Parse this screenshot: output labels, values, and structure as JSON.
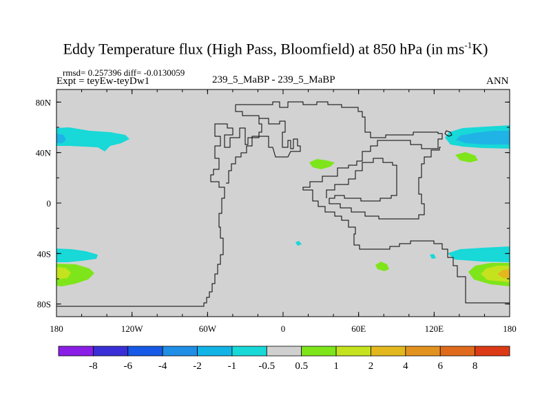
{
  "header": {
    "title_main": "Eddy Temperature flux (High Pass, Bloomfield) at 850 hPa (in ms",
    "title_sup": "-1",
    "title_tail": "K)",
    "stats": "rmsd= 0.257396 diff= -0.0130059",
    "expt": "Expt = teyEw-teyDw1",
    "case": "239_5_MaBP - 239_5_MaBP",
    "season": "ANN"
  },
  "chart_data": {
    "type": "contour_map",
    "title": "Eddy Temperature flux (High Pass, Bloomfield) at 850 hPa (in ms-1K)",
    "projection": "cylindrical equidistant",
    "xlim": [
      -180,
      180
    ],
    "ylim": [
      -90,
      90
    ],
    "x_ticks": [
      {
        "value": -180,
        "label": "180"
      },
      {
        "value": -120,
        "label": "120W"
      },
      {
        "value": -60,
        "label": "60W"
      },
      {
        "value": 0,
        "label": "0"
      },
      {
        "value": 60,
        "label": "60E"
      },
      {
        "value": 120,
        "label": "120E"
      },
      {
        "value": 180,
        "label": "180"
      }
    ],
    "y_ticks": [
      {
        "value": 80,
        "label": "80N"
      },
      {
        "value": 40,
        "label": "40N"
      },
      {
        "value": 0,
        "label": "0"
      },
      {
        "value": -40,
        "label": "40S"
      },
      {
        "value": -80,
        "label": "80S"
      }
    ],
    "colorbar": {
      "boundaries": [
        "-8",
        "-6",
        "-4",
        "-2",
        "-1",
        "-0.5",
        "0.5",
        "1",
        "2",
        "4",
        "6",
        "8"
      ],
      "colors": [
        "#8a1ee6",
        "#3a2fd6",
        "#1659e6",
        "#1f8ee6",
        "#12b4e6",
        "#18d8d8",
        "#d0d0d0",
        "#7ee51a",
        "#c4e31e",
        "#e2b81e",
        "#e2921e",
        "#e06a1c",
        "#dc3a16"
      ]
    },
    "background_value_range": [
      -0.5,
      0.5
    ],
    "features": [
      {
        "name": "north-pacific-negative",
        "lon": -165,
        "lat": 52,
        "range": [
          -2,
          -1
        ]
      },
      {
        "name": "north-pacific-west-negative",
        "lon": 165,
        "lat": 52,
        "range": [
          -2,
          -1
        ]
      },
      {
        "name": "north-pacific-west-negative-core",
        "lon": 170,
        "lat": 50,
        "range": [
          -4,
          -2
        ]
      },
      {
        "name": "south-ocean-negative-west",
        "lon": -165,
        "lat": -40,
        "range": [
          -2,
          -1
        ]
      },
      {
        "name": "south-ocean-negative-east",
        "lon": 165,
        "lat": -40,
        "range": [
          -2,
          -1
        ]
      },
      {
        "name": "south-ocean-positive-west",
        "lon": -165,
        "lat": -56,
        "range": [
          2,
          4
        ]
      },
      {
        "name": "south-ocean-positive-east",
        "lon": 165,
        "lat": -56,
        "range": [
          2,
          4
        ]
      },
      {
        "name": "africa-positive",
        "lon": 30,
        "lat": 32,
        "range": [
          0.5,
          1
        ]
      },
      {
        "name": "japan-positive",
        "lon": 150,
        "lat": 36,
        "range": [
          0.5,
          1
        ]
      },
      {
        "name": "indian-ocean-positive",
        "lon": 78,
        "lat": -50,
        "range": [
          0.5,
          1
        ]
      }
    ]
  }
}
